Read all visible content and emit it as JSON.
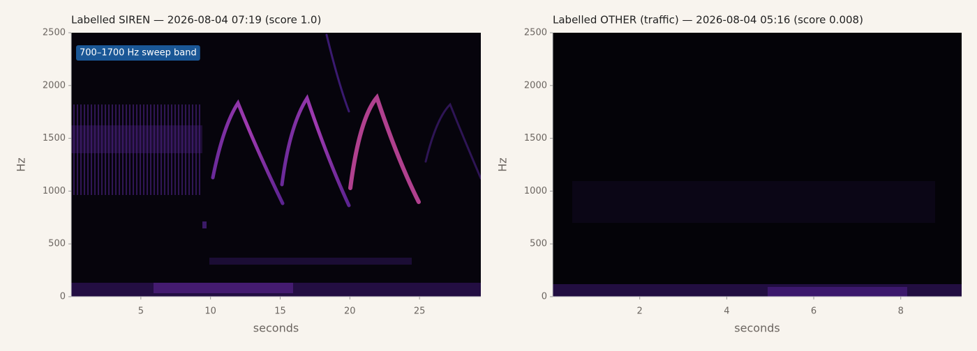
{
  "chart_data": [
    {
      "type": "spectrogram",
      "title": "Labelled SIREN — 2026-08-04 07:19 (score 1.0)",
      "x_label": "seconds",
      "y_label": "Hz",
      "annotation": "700–1700 Hz sweep band",
      "xlim": [
        0,
        29.4
      ],
      "xticks": [
        5,
        10,
        15,
        20,
        25
      ],
      "ylim": [
        0,
        2500
      ],
      "yticks": [
        0,
        500,
        1000,
        1500,
        2000,
        2500
      ]
    },
    {
      "type": "spectrogram",
      "title": "Labelled OTHER (traffic) — 2026-08-04 05:16 (score 0.008)",
      "x_label": "seconds",
      "y_label": "Hz",
      "xlim": [
        0,
        9.4
      ],
      "xticks": [
        2,
        4,
        6,
        8
      ],
      "ylim": [
        0,
        2500
      ],
      "yticks": [
        0,
        500,
        1000,
        1500,
        2000,
        2500
      ]
    }
  ]
}
